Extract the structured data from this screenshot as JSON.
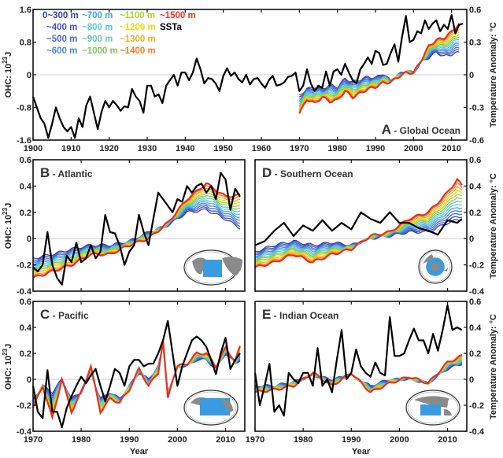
{
  "chart_data": [
    {
      "id": "A",
      "type": "line",
      "title": "Global Ocean",
      "letter": "A",
      "xlabel": "",
      "ylabel": "OHC: 10^23 J",
      "y2label": "Temperature Anomaly: °C",
      "xlim": [
        1900,
        2014
      ],
      "ylim": [
        -1.6,
        1.6
      ],
      "y2lim": [
        -0.6,
        0.6
      ],
      "xticks": [
        1900,
        1910,
        1920,
        1930,
        1940,
        1950,
        1960,
        1970,
        1980,
        1990,
        2000,
        2010
      ],
      "yticks": [
        -1.6,
        -0.8,
        0,
        0.8,
        1.6
      ],
      "y2ticks": [
        -0.6,
        -0.3,
        0,
        0.3,
        0.6
      ],
      "sst": {
        "x": [
          1900,
          1901,
          1902,
          1903,
          1904,
          1905,
          1906,
          1907,
          1908,
          1909,
          1910,
          1911,
          1912,
          1913,
          1914,
          1915,
          1916,
          1917,
          1918,
          1919,
          1920,
          1921,
          1922,
          1923,
          1924,
          1925,
          1926,
          1927,
          1928,
          1929,
          1930,
          1931,
          1932,
          1933,
          1934,
          1935,
          1936,
          1937,
          1938,
          1939,
          1940,
          1941,
          1942,
          1943,
          1944,
          1945,
          1946,
          1947,
          1948,
          1949,
          1950,
          1951,
          1952,
          1953,
          1954,
          1955,
          1956,
          1957,
          1958,
          1959,
          1960,
          1961,
          1962,
          1963,
          1964,
          1965,
          1966,
          1967,
          1968,
          1969,
          1970,
          1971,
          1972,
          1973,
          1974,
          1975,
          1976,
          1977,
          1978,
          1979,
          1980,
          1981,
          1982,
          1983,
          1984,
          1985,
          1986,
          1987,
          1988,
          1989,
          1990,
          1991,
          1992,
          1993,
          1994,
          1995,
          1996,
          1997,
          1998,
          1999,
          2000,
          2001,
          2002,
          2003,
          2004,
          2005,
          2006,
          2007,
          2008,
          2009,
          2010,
          2011,
          2012,
          2013
        ],
        "y": [
          -0.2,
          -0.3,
          -0.4,
          -0.45,
          -0.58,
          -0.45,
          -0.3,
          -0.4,
          -0.48,
          -0.52,
          -0.48,
          -0.58,
          -0.4,
          -0.48,
          -0.28,
          -0.2,
          -0.35,
          -0.5,
          -0.34,
          -0.24,
          -0.3,
          -0.24,
          -0.28,
          -0.33,
          -0.29,
          -0.3,
          -0.13,
          -0.2,
          -0.24,
          -0.35,
          -0.1,
          -0.1,
          -0.2,
          -0.18,
          -0.26,
          -0.1,
          -0.05,
          0.0,
          -0.1,
          0.02,
          0.02,
          -0.05,
          0.02,
          0.15,
          0.05,
          -0.08,
          -0.03,
          -0.04,
          -0.08,
          -0.15,
          -0.01,
          0.06,
          -0.01,
          0.02,
          -0.04,
          -0.07,
          0.0,
          -0.09,
          -0.04,
          -0.03,
          -0.08,
          -0.12,
          -0.05,
          -0.01,
          -0.1,
          -0.09,
          -0.07,
          -0.02,
          -0.01,
          0.02,
          -0.15,
          -0.1,
          0.05,
          -0.08,
          -0.15,
          -0.1,
          -0.12,
          0.03,
          -0.1,
          0.03,
          0.05,
          0.0,
          0.1,
          0.02,
          -0.05,
          -0.08,
          0.05,
          0.1,
          0.16,
          0.1,
          0.22,
          0.2,
          0.09,
          0.1,
          0.2,
          0.28,
          0.12,
          0.35,
          0.54,
          0.3,
          0.32,
          0.4,
          0.38,
          0.5,
          0.42,
          0.47,
          0.5,
          0.4,
          0.46,
          0.42,
          0.55,
          0.38,
          0.46,
          0.47
        ]
      },
      "ohc_x": [
        1970,
        1972,
        1974,
        1976,
        1978,
        1980,
        1982,
        1984,
        1986,
        1988,
        1990,
        1992,
        1994,
        1996,
        1998,
        2000,
        2002,
        2004,
        2006,
        2008,
        2010,
        2012
      ],
      "ohc_shallow": [
        -0.5,
        -0.35,
        -0.3,
        -0.35,
        -0.25,
        -0.3,
        -0.1,
        -0.18,
        -0.12,
        -0.05,
        -0.08,
        0.03,
        -0.15,
        0.0,
        0.1,
        0.05,
        0.3,
        0.42,
        0.55,
        0.45,
        0.5,
        0.55
      ],
      "ohc_deep": [
        -0.95,
        -0.6,
        -0.7,
        -0.55,
        -0.65,
        -0.62,
        -0.4,
        -0.55,
        -0.45,
        -0.35,
        -0.3,
        -0.2,
        -0.18,
        -0.05,
        0.05,
        0.05,
        0.35,
        0.7,
        0.85,
        0.9,
        1.05,
        1.25
      ]
    },
    {
      "id": "B",
      "type": "line",
      "title": "Atlantic",
      "letter": "B",
      "xlabel": "",
      "ylabel": "OHC: 10^23 J",
      "xlim": [
        1970,
        2014
      ],
      "ylim": [
        -0.4,
        0.6
      ],
      "yticks": [
        -0.4,
        -0.2,
        0,
        0.2,
        0.4,
        0.6
      ],
      "xticks": [
        1970,
        1980,
        1990,
        2000,
        2010
      ],
      "sst": {
        "x": [
          1970,
          1971,
          1972,
          1973,
          1974,
          1975,
          1976,
          1977,
          1978,
          1979,
          1980,
          1981,
          1982,
          1983,
          1984,
          1985,
          1986,
          1987,
          1988,
          1989,
          1990,
          1991,
          1992,
          1993,
          1994,
          1995,
          1996,
          1997,
          1998,
          1999,
          2000,
          2001,
          2002,
          2003,
          2004,
          2005,
          2006,
          2007,
          2008,
          2009,
          2010,
          2011,
          2012,
          2013
        ],
        "y": [
          -0.22,
          -0.25,
          -0.2,
          0.05,
          -0.2,
          -0.3,
          -0.35,
          -0.13,
          -0.18,
          -0.03,
          -0.18,
          -0.15,
          -0.05,
          -0.15,
          -0.1,
          0.18,
          0.05,
          0.04,
          -0.05,
          -0.2,
          -0.1,
          -0.05,
          0.18,
          0.05,
          -0.05,
          0.15,
          0.35,
          0.3,
          0.25,
          0.2,
          0.3,
          0.28,
          0.4,
          0.35,
          0.4,
          0.42,
          0.35,
          0.4,
          0.3,
          0.5,
          0.45,
          0.22,
          0.38,
          0.32
        ]
      },
      "ohc_x": [
        1970,
        1974,
        1978,
        1982,
        1986,
        1990,
        1994,
        1998,
        2002,
        2006,
        2010,
        2013
      ],
      "ohc_shallow": [
        -0.15,
        -0.12,
        -0.08,
        -0.05,
        -0.05,
        -0.02,
        0.05,
        0.1,
        0.2,
        0.22,
        0.15,
        0.08
      ],
      "ohc_deep": [
        -0.3,
        -0.25,
        -0.2,
        -0.12,
        -0.12,
        -0.05,
        0.0,
        0.12,
        0.3,
        0.42,
        0.32,
        0.33
      ],
      "map": "atlantic"
    },
    {
      "id": "D",
      "type": "line",
      "title": "Southern Ocean",
      "letter": "D",
      "xlabel": "",
      "y2label": "Temperature Anomaly: °C",
      "xlim": [
        1970,
        2014
      ],
      "y2lim": [
        -0.4,
        0.6
      ],
      "y2ticks": [
        -0.4,
        -0.2,
        0,
        0.2,
        0.4,
        0.6
      ],
      "xticks": [
        1970,
        1980,
        1990,
        2000,
        2010
      ],
      "sst": {
        "x": [
          1970,
          1972,
          1974,
          1976,
          1978,
          1980,
          1982,
          1984,
          1986,
          1988,
          1990,
          1992,
          1994,
          1996,
          1998,
          2000,
          2002,
          2004,
          2006,
          2008,
          2010,
          2012,
          2013
        ],
        "y": [
          -0.05,
          -0.02,
          0.06,
          0.12,
          0.02,
          0.1,
          0.06,
          0.14,
          0.06,
          0.12,
          0.07,
          0.2,
          0.15,
          0.12,
          0.2,
          0.12,
          0.12,
          0.08,
          0.06,
          0.03,
          0.14,
          0.12,
          0.15
        ]
      },
      "ohc_x": [
        1970,
        1974,
        1978,
        1982,
        1986,
        1990,
        1994,
        1998,
        2002,
        2006,
        2010,
        2012,
        2013
      ],
      "ohc_shallow": [
        -0.1,
        -0.05,
        -0.02,
        -0.05,
        -0.03,
        -0.05,
        0.0,
        0.02,
        0.05,
        0.05,
        0.12,
        0.14,
        0.15
      ],
      "ohc_deep": [
        -0.22,
        -0.18,
        -0.12,
        -0.18,
        -0.12,
        -0.08,
        0.02,
        0.05,
        0.15,
        0.2,
        0.35,
        0.45,
        0.4
      ],
      "map": "southern"
    },
    {
      "id": "C",
      "type": "line",
      "title": "Pacific",
      "letter": "C",
      "xlabel": "Year",
      "ylabel": "OHC: 10^23 J",
      "xlim": [
        1970,
        2014
      ],
      "ylim": [
        -0.4,
        0.6
      ],
      "yticks": [
        -0.4,
        -0.2,
        0,
        0.2,
        0.4,
        0.6
      ],
      "xticks": [
        1970,
        1980,
        1990,
        2000,
        2010
      ],
      "sst": {
        "x": [
          1970,
          1971,
          1972,
          1973,
          1974,
          1975,
          1976,
          1977,
          1978,
          1979,
          1980,
          1981,
          1982,
          1983,
          1984,
          1985,
          1986,
          1987,
          1988,
          1989,
          1990,
          1991,
          1992,
          1993,
          1994,
          1995,
          1996,
          1997,
          1998,
          1999,
          2000,
          2001,
          2002,
          2003,
          2004,
          2005,
          2006,
          2007,
          2008,
          2009,
          2010,
          2011,
          2012,
          2013
        ],
        "y": [
          -0.05,
          -0.25,
          -0.3,
          0.07,
          -0.25,
          -0.25,
          -0.37,
          -0.22,
          -0.13,
          -0.05,
          0.02,
          -0.03,
          0.03,
          0.08,
          -0.05,
          -0.17,
          -0.05,
          0.08,
          0.05,
          -0.05,
          0.1,
          0.15,
          0.15,
          0.1,
          0.12,
          0.12,
          0.2,
          0.3,
          0.45,
          0.2,
          -0.05,
          0.1,
          0.2,
          0.3,
          0.33,
          0.3,
          0.25,
          0.15,
          0.04,
          0.2,
          0.32,
          0.08,
          0.15,
          0.2
        ]
      },
      "ohc_x": [
        1970,
        1972,
        1974,
        1976,
        1978,
        1980,
        1982,
        1984,
        1986,
        1988,
        1990,
        1992,
        1994,
        1996,
        1997,
        1998,
        1999,
        2000,
        2002,
        2004,
        2006,
        2008,
        2010,
        2012,
        2013
      ],
      "ohc_shallow": [
        -0.15,
        -0.05,
        -0.1,
        0.0,
        -0.15,
        -0.1,
        0.05,
        -0.15,
        -0.1,
        -0.15,
        -0.05,
        0.05,
        0.0,
        0.1,
        0.25,
        -0.08,
        -0.02,
        0.1,
        0.1,
        0.15,
        0.15,
        0.08,
        0.2,
        0.12,
        0.15
      ],
      "ohc_deep": [
        -0.22,
        -0.05,
        -0.3,
        0.0,
        -0.25,
        -0.1,
        0.1,
        -0.25,
        -0.15,
        -0.18,
        -0.08,
        0.08,
        -0.05,
        0.05,
        0.3,
        -0.15,
        0.0,
        0.1,
        0.12,
        0.2,
        0.2,
        0.1,
        0.24,
        0.14,
        0.25
      ],
      "map": "pacific"
    },
    {
      "id": "E",
      "type": "line",
      "title": "Indian Ocean",
      "letter": "E",
      "xlabel": "Year",
      "y2label": "Temperature Anomaly: °C",
      "xlim": [
        1970,
        2014
      ],
      "y2lim": [
        -0.4,
        0.6
      ],
      "y2ticks": [
        -0.4,
        -0.2,
        0,
        0.2,
        0.4,
        0.6
      ],
      "xticks": [
        1970,
        1980,
        1990,
        2000,
        2010
      ],
      "sst": {
        "x": [
          1970,
          1971,
          1972,
          1973,
          1974,
          1975,
          1976,
          1977,
          1978,
          1979,
          1980,
          1981,
          1982,
          1983,
          1984,
          1985,
          1986,
          1987,
          1988,
          1989,
          1990,
          1991,
          1992,
          1993,
          1994,
          1995,
          1996,
          1997,
          1998,
          1999,
          2000,
          2001,
          2002,
          2003,
          2004,
          2005,
          2006,
          2007,
          2008,
          2009,
          2010,
          2011,
          2012,
          2013
        ],
        "y": [
          0.05,
          -0.2,
          -0.05,
          0.12,
          -0.25,
          -0.2,
          -0.28,
          0.05,
          0.0,
          -0.03,
          0.05,
          0.05,
          -0.05,
          0.24,
          -0.05,
          0.0,
          -0.1,
          0.15,
          0.38,
          0.0,
          0.05,
          0.23,
          0.1,
          0.05,
          0.02,
          0.13,
          0.05,
          0.03,
          0.48,
          0.18,
          0.18,
          0.2,
          0.3,
          0.39,
          0.3,
          0.3,
          0.2,
          0.35,
          0.22,
          0.38,
          0.57,
          0.38,
          0.4,
          0.38
        ]
      },
      "ohc_x": [
        1970,
        1974,
        1978,
        1982,
        1986,
        1990,
        1994,
        1998,
        2002,
        2006,
        2010,
        2013
      ],
      "ohc_shallow": [
        -0.05,
        -0.05,
        -0.02,
        0.03,
        0.0,
        0.03,
        -0.05,
        0.0,
        0.0,
        -0.03,
        0.08,
        0.12
      ],
      "ohc_deep": [
        -0.1,
        -0.08,
        -0.05,
        0.05,
        -0.05,
        0.05,
        -0.1,
        -0.03,
        0.02,
        -0.03,
        0.13,
        0.18
      ],
      "map": "indian"
    }
  ],
  "legend": {
    "items": [
      {
        "label": "0~300 m",
        "color": "#3b3fa8"
      },
      {
        "label": "~400 m",
        "color": "#4452b8"
      },
      {
        "label": "~500 m",
        "color": "#4a6cc8"
      },
      {
        "label": "~600 m",
        "color": "#4a86d8"
      },
      {
        "label": "~700 m",
        "color": "#3aa8e8"
      },
      {
        "label": "~800 m",
        "color": "#5cc8e0"
      },
      {
        "label": "~900 m",
        "color": "#6cc8a8"
      },
      {
        "label": "~1000 m",
        "color": "#80c860"
      },
      {
        "label": "~1100 m",
        "color": "#a8d030"
      },
      {
        "label": "~1200 m",
        "color": "#e8d810"
      },
      {
        "label": "~1300 m",
        "color": "#f0b020"
      },
      {
        "label": "~1400 m",
        "color": "#f08028"
      },
      {
        "label": "~1500 m",
        "color": "#e83020"
      },
      {
        "label": "SSTa",
        "color": "#000000"
      }
    ]
  },
  "labels": {
    "ohc_axis": "OHC: 10",
    "ohc_exp": "23",
    "ohc_unit": "J",
    "temp_axis": "Temperature Anomaly: °C",
    "year": "Year",
    "dash_sep": " - "
  }
}
